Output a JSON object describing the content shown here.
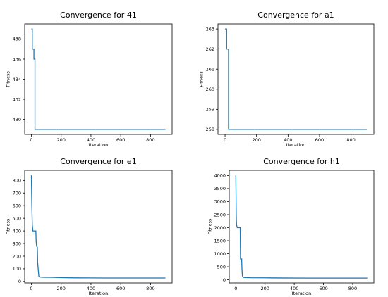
{
  "chart_data": [
    {
      "type": "line",
      "title": "Convergence for 41",
      "xlabel": "Iteration",
      "ylabel": "Fitness",
      "xlim": [
        -45,
        945
      ],
      "ylim": [
        428.5,
        439.5
      ],
      "xticks": [
        0,
        200,
        400,
        600,
        800
      ],
      "yticks": [
        430,
        432,
        434,
        436,
        438
      ],
      "line_color": "#1f77b4",
      "grid": false,
      "series": [
        {
          "x": [
            0,
            6,
            6,
            17,
            17,
            24,
            24,
            900
          ],
          "y": [
            439,
            439,
            437,
            437,
            436,
            436,
            429,
            429
          ]
        }
      ]
    },
    {
      "type": "line",
      "title": "Convergence for a1",
      "xlabel": "Iteration",
      "ylabel": "Fitness",
      "xlim": [
        -45,
        945
      ],
      "ylim": [
        257.75,
        263.25
      ],
      "xticks": [
        0,
        200,
        400,
        600,
        800
      ],
      "yticks": [
        258,
        259,
        260,
        261,
        262,
        263
      ],
      "line_color": "#1f77b4",
      "grid": false,
      "series": [
        {
          "x": [
            0,
            10,
            10,
            22,
            22,
            900
          ],
          "y": [
            263,
            263,
            262,
            262,
            258,
            258
          ]
        }
      ]
    },
    {
      "type": "line",
      "title": "Convergence for e1",
      "xlabel": "Iteration",
      "ylabel": "Fitness",
      "xlim": [
        -45,
        945
      ],
      "ylim": [
        -12,
        880
      ],
      "xticks": [
        0,
        200,
        400,
        600,
        800
      ],
      "yticks": [
        0,
        100,
        200,
        300,
        400,
        500,
        600,
        700,
        800
      ],
      "line_color": "#1f77b4",
      "grid": false,
      "series": [
        {
          "x": [
            0,
            3,
            6,
            10,
            30,
            32,
            35,
            40,
            42,
            50,
            55,
            80,
            150,
            200,
            300,
            500,
            700,
            900
          ],
          "y": [
            840,
            600,
            450,
            400,
            400,
            320,
            280,
            270,
            150,
            40,
            35,
            33,
            32,
            30,
            28,
            27,
            27,
            27
          ]
        }
      ]
    },
    {
      "type": "line",
      "title": "Convergence for h1",
      "xlabel": "Iteration",
      "ylabel": "Fitness",
      "xlim": [
        -45,
        945
      ],
      "ylim": [
        -120,
        4200
      ],
      "xticks": [
        0,
        200,
        400,
        600,
        800
      ],
      "yticks": [
        0,
        500,
        1000,
        1500,
        2000,
        2500,
        3000,
        3500,
        4000
      ],
      "line_color": "#1f77b4",
      "grid": false,
      "series": [
        {
          "x": [
            0,
            3,
            5,
            10,
            30,
            32,
            40,
            42,
            45,
            50,
            55,
            100,
            200,
            300,
            500,
            700,
            900
          ],
          "y": [
            4000,
            2400,
            2100,
            2000,
            2000,
            800,
            800,
            400,
            150,
            100,
            90,
            80,
            75,
            70,
            65,
            65,
            65
          ]
        }
      ]
    }
  ]
}
